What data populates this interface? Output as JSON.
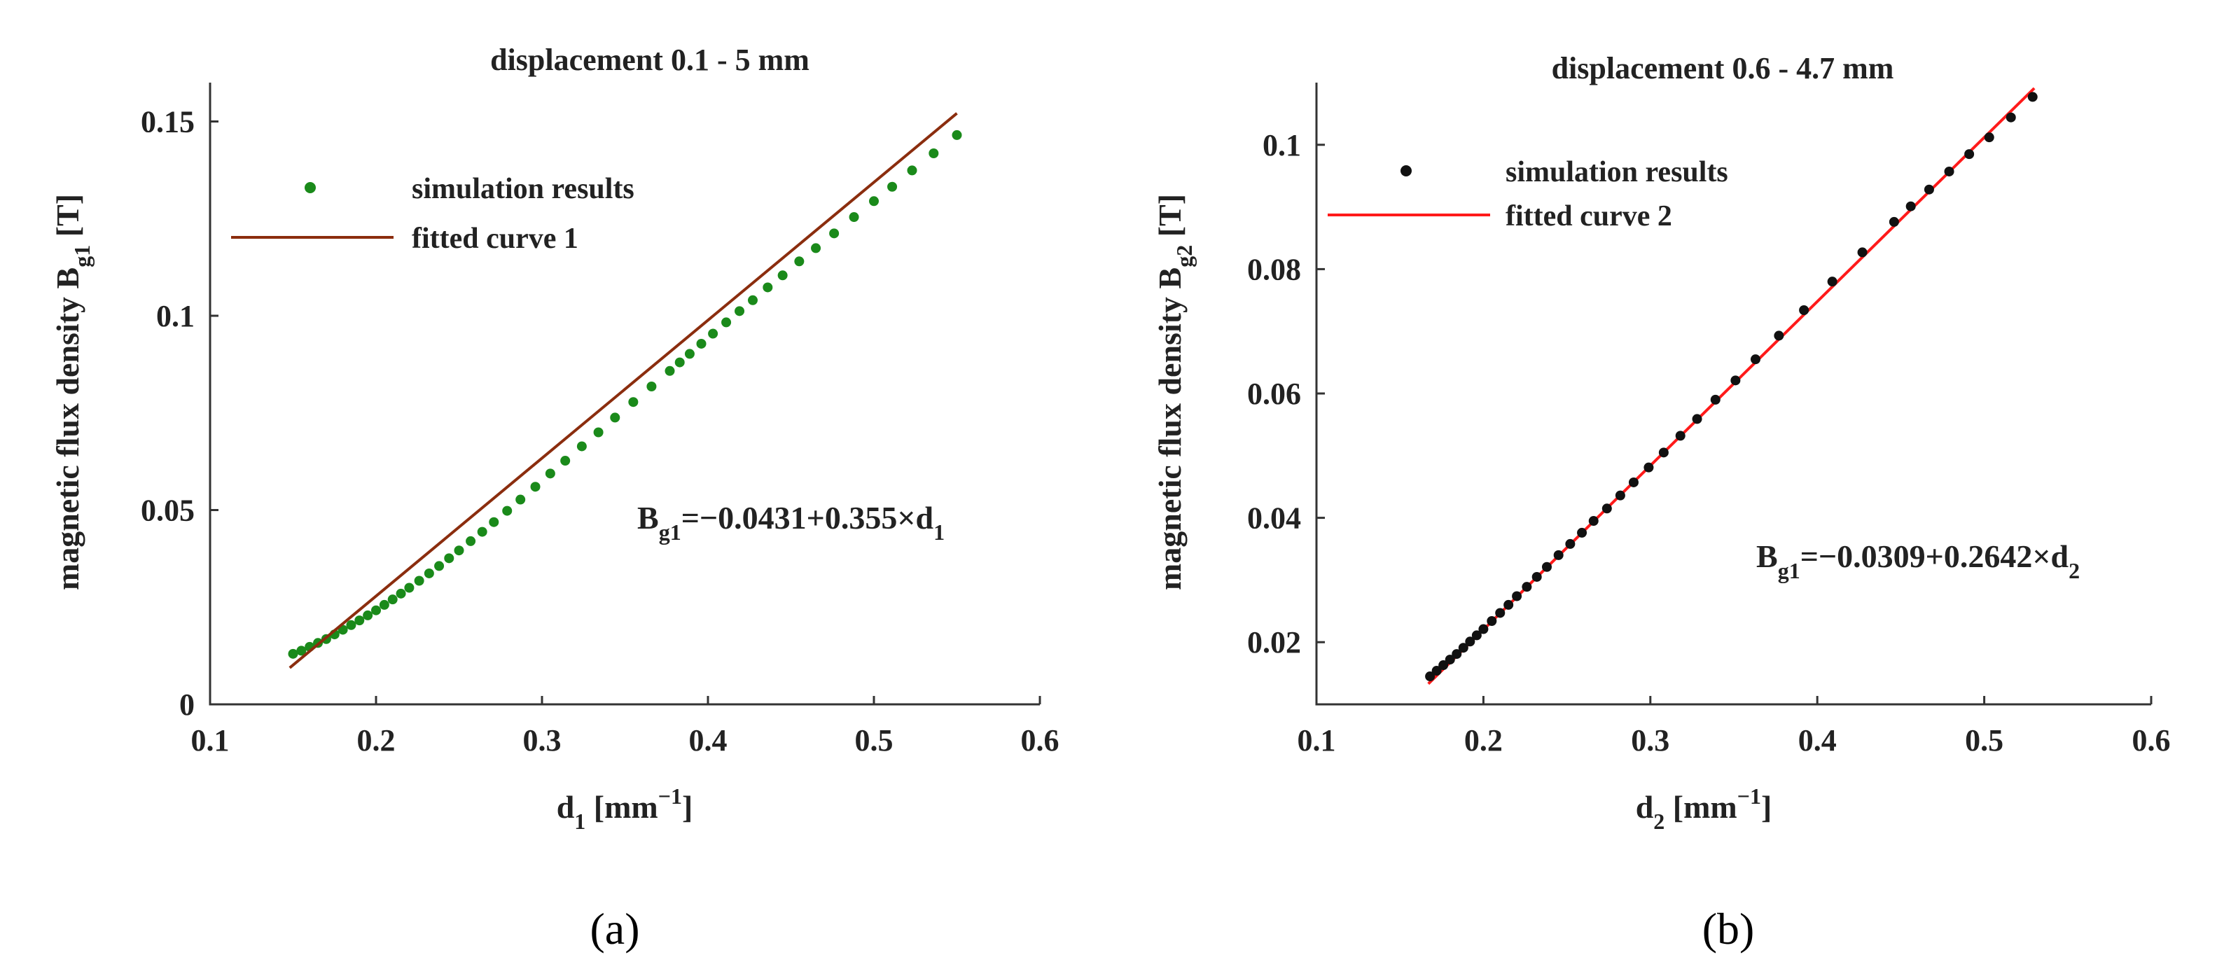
{
  "chart_data": [
    {
      "type": "scatter",
      "panel_label": "(a)",
      "title": "displacement 0.1 - 5 mm",
      "xlabel": {
        "main": "d",
        "sub": "1",
        "unit_open": " [mm",
        "unit_sup": "−1",
        "unit_close": "]"
      },
      "ylabel": {
        "main": "magnetic flux density B",
        "sub": "g1",
        "unit": " [T]"
      },
      "xlim": [
        0.1,
        0.6
      ],
      "ylim": [
        0,
        0.16
      ],
      "xticks": [
        0.1,
        0.2,
        0.3,
        0.4,
        0.5,
        0.6
      ],
      "xtick_labels": [
        "0.1",
        "0.2",
        "0.3",
        "0.4",
        "0.5",
        "0.6"
      ],
      "yticks": [
        0,
        0.05,
        0.1,
        0.15
      ],
      "ytick_labels": [
        "0",
        "0.05",
        "0.1",
        "0.15"
      ],
      "series": [
        {
          "name": "simulation results",
          "kind": "markers",
          "color": "#1a8a1a",
          "x": [
            0.15,
            0.155,
            0.16,
            0.165,
            0.17,
            0.175,
            0.18,
            0.185,
            0.19,
            0.195,
            0.2,
            0.205,
            0.21,
            0.215,
            0.22,
            0.226,
            0.232,
            0.238,
            0.244,
            0.25,
            0.257,
            0.264,
            0.271,
            0.279,
            0.287,
            0.296,
            0.305,
            0.314,
            0.324,
            0.334,
            0.344,
            0.355,
            0.366,
            0.377,
            0.383,
            0.389,
            0.396,
            0.403,
            0.411,
            0.419,
            0.427,
            0.436,
            0.445,
            0.455,
            0.465,
            0.476,
            0.488,
            0.5,
            0.511,
            0.523,
            0.536,
            0.55
          ],
          "y": [
            0.013,
            0.0138,
            0.0148,
            0.0158,
            0.0168,
            0.018,
            0.0192,
            0.0204,
            0.0216,
            0.0229,
            0.0242,
            0.0256,
            0.027,
            0.0285,
            0.03,
            0.0318,
            0.0337,
            0.0356,
            0.0376,
            0.0396,
            0.042,
            0.0444,
            0.0469,
            0.0498,
            0.0527,
            0.056,
            0.0594,
            0.0627,
            0.0664,
            0.07,
            0.0738,
            0.0778,
            0.0818,
            0.0858,
            0.088,
            0.0902,
            0.0928,
            0.0954,
            0.0983,
            0.1012,
            0.104,
            0.1073,
            0.1104,
            0.114,
            0.1174,
            0.1212,
            0.1254,
            0.1295,
            0.1332,
            0.1374,
            0.1418,
            0.1465
          ]
        },
        {
          "name": "fitted curve 1",
          "kind": "line",
          "color": "#8b2d0e",
          "x": [
            0.148,
            0.55
          ],
          "y": [
            0.0094,
            0.1521
          ]
        }
      ],
      "annotation": {
        "main": "B",
        "sub": "g1",
        "rest": "=−0.0431+0.355×d",
        "sub2": "1"
      }
    },
    {
      "type": "scatter",
      "panel_label": "(b)",
      "title": "displacement 0.6 - 4.7 mm",
      "xlabel": {
        "main": "d",
        "sub": "2",
        "unit_open": " [mm",
        "unit_sup": "−1",
        "unit_close": "]"
      },
      "ylabel": {
        "main": "magnetic flux density  B",
        "sub": "g2",
        "unit": " [T]"
      },
      "xlim": [
        0.1,
        0.6
      ],
      "ylim": [
        0.01,
        0.11
      ],
      "xticks": [
        0.1,
        0.2,
        0.3,
        0.4,
        0.5,
        0.6
      ],
      "xtick_labels": [
        "0.1",
        "0.2",
        "0.3",
        "0.4",
        "0.5",
        "0.6"
      ],
      "yticks": [
        0.02,
        0.04,
        0.06,
        0.08,
        0.1
      ],
      "ytick_labels": [
        "0.02",
        "0.04",
        "0.06",
        "0.08",
        "0.1"
      ],
      "series": [
        {
          "name": "simulation results",
          "kind": "markers",
          "color": "#111111",
          "x": [
            0.168,
            0.172,
            0.176,
            0.18,
            0.184,
            0.188,
            0.192,
            0.196,
            0.2,
            0.205,
            0.21,
            0.215,
            0.22,
            0.226,
            0.232,
            0.238,
            0.245,
            0.252,
            0.259,
            0.266,
            0.274,
            0.282,
            0.29,
            0.299,
            0.308,
            0.318,
            0.328,
            0.339,
            0.351,
            0.363,
            0.377,
            0.392,
            0.409,
            0.427,
            0.446,
            0.456,
            0.467,
            0.479,
            0.491,
            0.503,
            0.516,
            0.529
          ],
          "y": [
            0.0145,
            0.0154,
            0.0163,
            0.0172,
            0.0181,
            0.0191,
            0.0201,
            0.0211,
            0.0221,
            0.0234,
            0.0247,
            0.026,
            0.0274,
            0.0289,
            0.0305,
            0.0321,
            0.034,
            0.0358,
            0.0376,
            0.0395,
            0.0415,
            0.0436,
            0.0457,
            0.0481,
            0.0505,
            0.0532,
            0.0559,
            0.059,
            0.0621,
            0.0655,
            0.0693,
            0.0734,
            0.078,
            0.0827,
            0.0876,
            0.0901,
            0.0928,
            0.0957,
            0.0985,
            0.1012,
            0.1044,
            0.1077
          ]
        },
        {
          "name": "fitted curve 2",
          "kind": "line",
          "color": "#ff1a1a",
          "x": [
            0.167,
            0.53
          ],
          "y": [
            0.0133,
            0.1091
          ]
        }
      ],
      "annotation": {
        "main": "B",
        "sub": "g1",
        "rest": "=−0.0309+0.2642×d",
        "sub2": "2"
      }
    }
  ]
}
